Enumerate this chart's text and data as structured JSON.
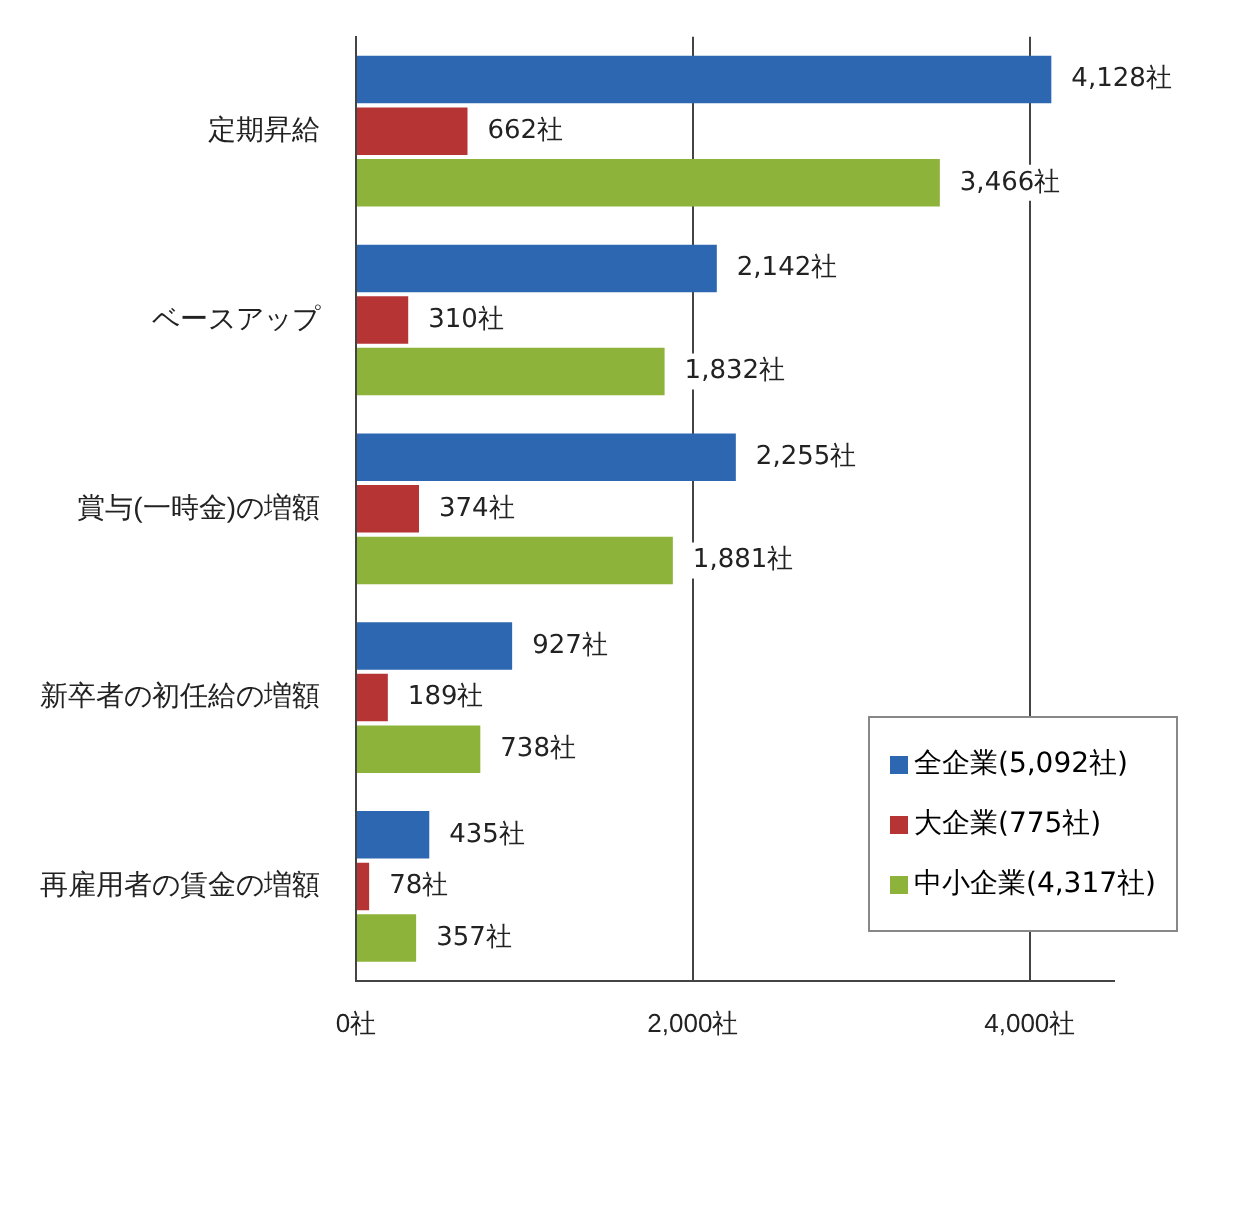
{
  "chart_data": {
    "type": "bar",
    "orientation": "horizontal",
    "categories": [
      "定期昇給",
      "ベースアップ",
      "賞与(一時金)の増額",
      "新卒者の初任給の増額",
      "再雇用者の賃金の増額"
    ],
    "series": [
      {
        "name": "全企業(5,092社)",
        "color": "#2e67b1",
        "values": [
          4128,
          2142,
          2255,
          927,
          435
        ],
        "value_labels": [
          "4,128社",
          "2,142社",
          "2,255社",
          "927社",
          "435社"
        ]
      },
      {
        "name": "大企業(775社)",
        "color": "#b63434",
        "values": [
          662,
          310,
          374,
          189,
          78
        ],
        "value_labels": [
          "662社",
          "310社",
          "374社",
          "189社",
          "78社"
        ]
      },
      {
        "name": "中小企業(4,317社)",
        "color": "#8db33a",
        "values": [
          3466,
          1832,
          1881,
          738,
          357
        ],
        "value_labels": [
          "3,466社",
          "1,832社",
          "1,881社",
          "738社",
          "357社"
        ]
      }
    ],
    "xlim": [
      0,
      4500
    ],
    "xticks": [
      {
        "value": 0,
        "label": "0社"
      },
      {
        "value": 2000,
        "label": "2,000社"
      },
      {
        "value": 4000,
        "label": "4,000社"
      }
    ],
    "grid": "x",
    "legend": "bottom right"
  }
}
